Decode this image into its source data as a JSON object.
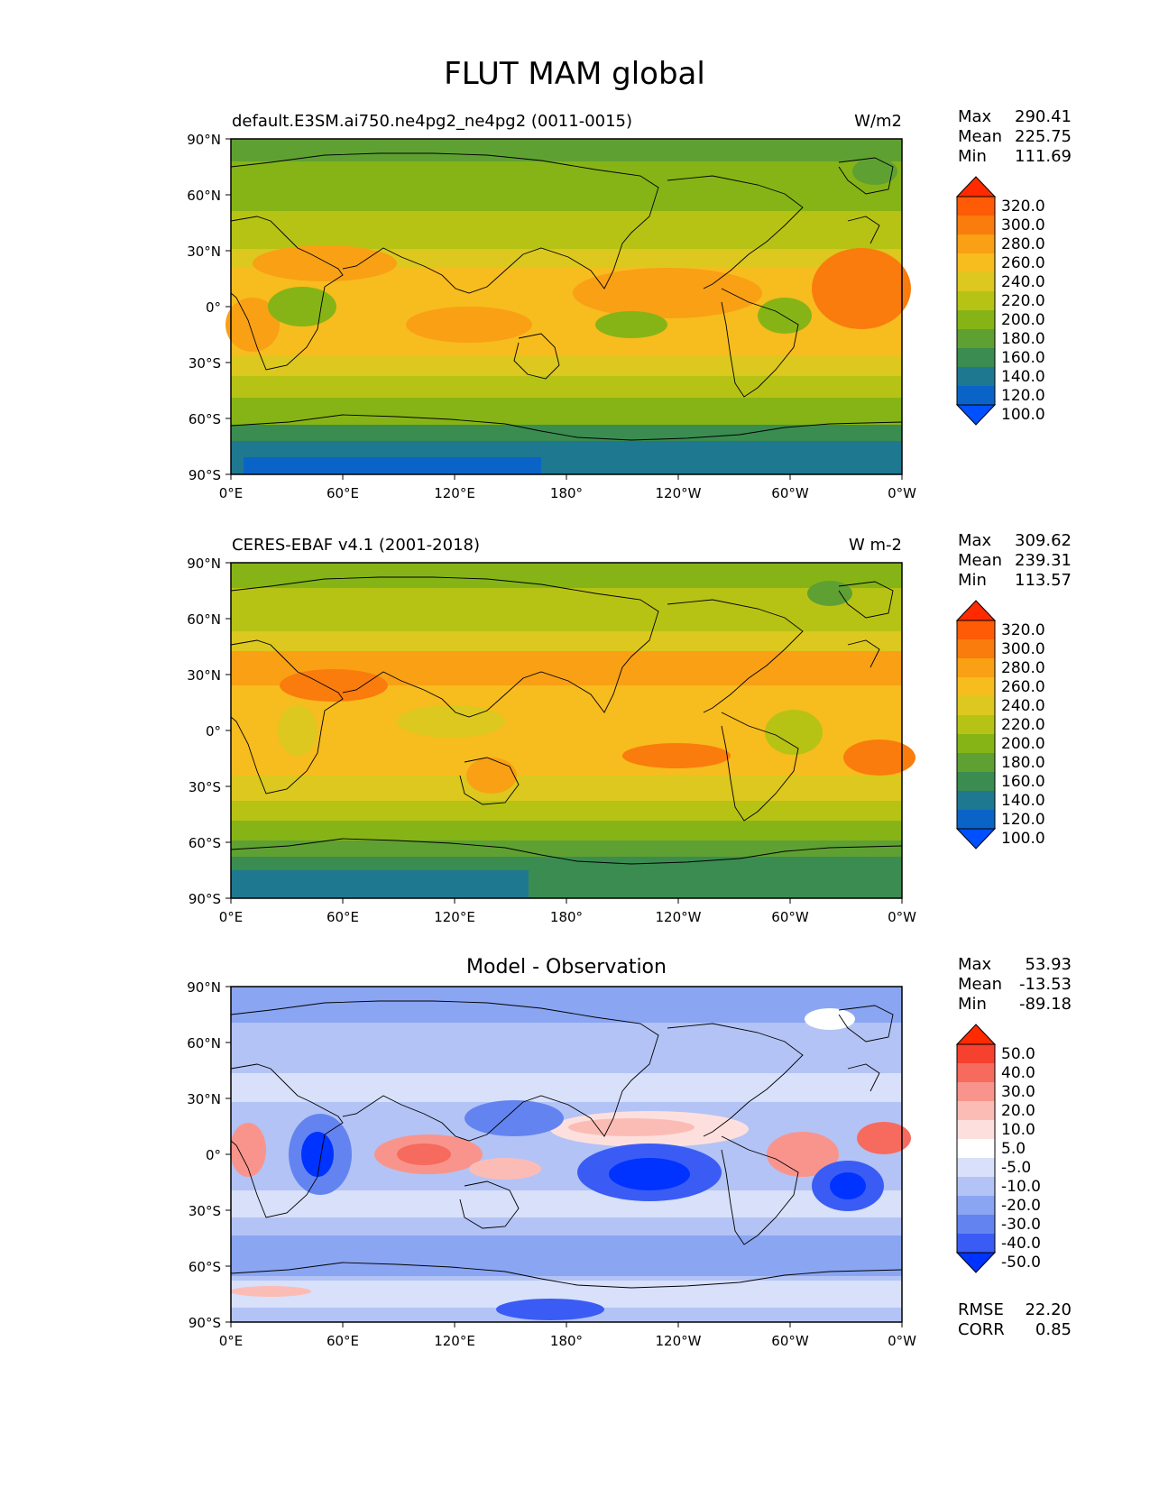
{
  "figure_title": "FLUT MAM global",
  "panels": [
    {
      "title_left": "default.E3SM.ai750.ne4pg2_ne4pg2 (0011-0015)",
      "title_right": "W/m2",
      "title_center": "",
      "stats": [
        [
          "Max",
          "290.41"
        ],
        [
          "Mean",
          "225.75"
        ],
        [
          "Min",
          "111.69"
        ]
      ],
      "colorbar": {
        "labels": [
          "320.0",
          "300.0",
          "280.0",
          "260.0",
          "240.0",
          "220.0",
          "200.0",
          "180.0",
          "160.0",
          "140.0",
          "120.0",
          "100.0"
        ],
        "colors": [
          "#0050ff",
          "#0a64c8",
          "#1e7890",
          "#3a8c50",
          "#5fa033",
          "#86b416",
          "#b6c314",
          "#dcc81e",
          "#f7bc1e",
          "#f9a015",
          "#f97c0d",
          "#ff5a05",
          "#ff2a00"
        ]
      },
      "footer_stats": []
    },
    {
      "title_left": "CERES-EBAF v4.1 (2001-2018)",
      "title_right": "W m-2",
      "title_center": "",
      "stats": [
        [
          "Max",
          "309.62"
        ],
        [
          "Mean",
          "239.31"
        ],
        [
          "Min",
          "113.57"
        ]
      ],
      "colorbar": {
        "labels": [
          "320.0",
          "300.0",
          "280.0",
          "260.0",
          "240.0",
          "220.0",
          "200.0",
          "180.0",
          "160.0",
          "140.0",
          "120.0",
          "100.0"
        ],
        "colors": [
          "#0050ff",
          "#0a64c8",
          "#1e7890",
          "#3a8c50",
          "#5fa033",
          "#86b416",
          "#b6c314",
          "#dcc81e",
          "#f7bc1e",
          "#f9a015",
          "#f97c0d",
          "#ff5a05",
          "#ff2a00"
        ]
      },
      "footer_stats": []
    },
    {
      "title_left": "",
      "title_right": "",
      "title_center": "Model - Observation",
      "stats": [
        [
          "Max",
          "53.93"
        ],
        [
          "Mean",
          "-13.53"
        ],
        [
          "Min",
          "-89.18"
        ]
      ],
      "colorbar": {
        "labels": [
          "50.0",
          "40.0",
          "30.0",
          "20.0",
          "10.0",
          "5.0",
          "-5.0",
          "-10.0",
          "-20.0",
          "-30.0",
          "-40.0",
          "-50.0"
        ],
        "colors": [
          "#0033ff",
          "#3a5cf5",
          "#6384f0",
          "#8aa5f2",
          "#b3c3f5",
          "#d8e0fa",
          "#ffffff",
          "#fde0de",
          "#fcbcb6",
          "#f9948c",
          "#f76a5e",
          "#f5412e",
          "#ff2a00"
        ]
      },
      "footer_stats": [
        [
          "RMSE",
          "22.20"
        ],
        [
          "CORR",
          "0.85"
        ]
      ]
    }
  ],
  "x_ticks": [
    "0°E",
    "60°E",
    "120°E",
    "180°",
    "120°W",
    "60°W",
    "0°W"
  ],
  "y_ticks": [
    "90°N",
    "60°N",
    "30°N",
    "0°",
    "30°S",
    "60°S",
    "90°S"
  ],
  "chart_data": [
    {
      "type": "heatmap",
      "title": "default.E3SM.ai750.ne4pg2_ne4pg2 (0011-0015)",
      "units": "W/m2",
      "xlim": [
        0,
        360
      ],
      "ylim": [
        -90,
        90
      ],
      "stats": {
        "max": 290.41,
        "mean": 225.75,
        "min": 111.69
      },
      "levels": [
        100,
        120,
        140,
        160,
        180,
        200,
        220,
        240,
        260,
        280,
        300,
        320
      ]
    },
    {
      "type": "heatmap",
      "title": "CERES-EBAF v4.1 (2001-2018)",
      "units": "W m-2",
      "xlim": [
        0,
        360
      ],
      "ylim": [
        -90,
        90
      ],
      "stats": {
        "max": 309.62,
        "mean": 239.31,
        "min": 113.57
      },
      "levels": [
        100,
        120,
        140,
        160,
        180,
        200,
        220,
        240,
        260,
        280,
        300,
        320
      ]
    },
    {
      "type": "heatmap",
      "title": "Model - Observation",
      "xlim": [
        0,
        360
      ],
      "ylim": [
        -90,
        90
      ],
      "stats": {
        "max": 53.93,
        "mean": -13.53,
        "min": -89.18,
        "rmse": 22.2,
        "corr": 0.85
      },
      "levels": [
        -50,
        -40,
        -30,
        -20,
        -10,
        -5,
        5,
        10,
        20,
        30,
        40,
        50
      ]
    }
  ]
}
